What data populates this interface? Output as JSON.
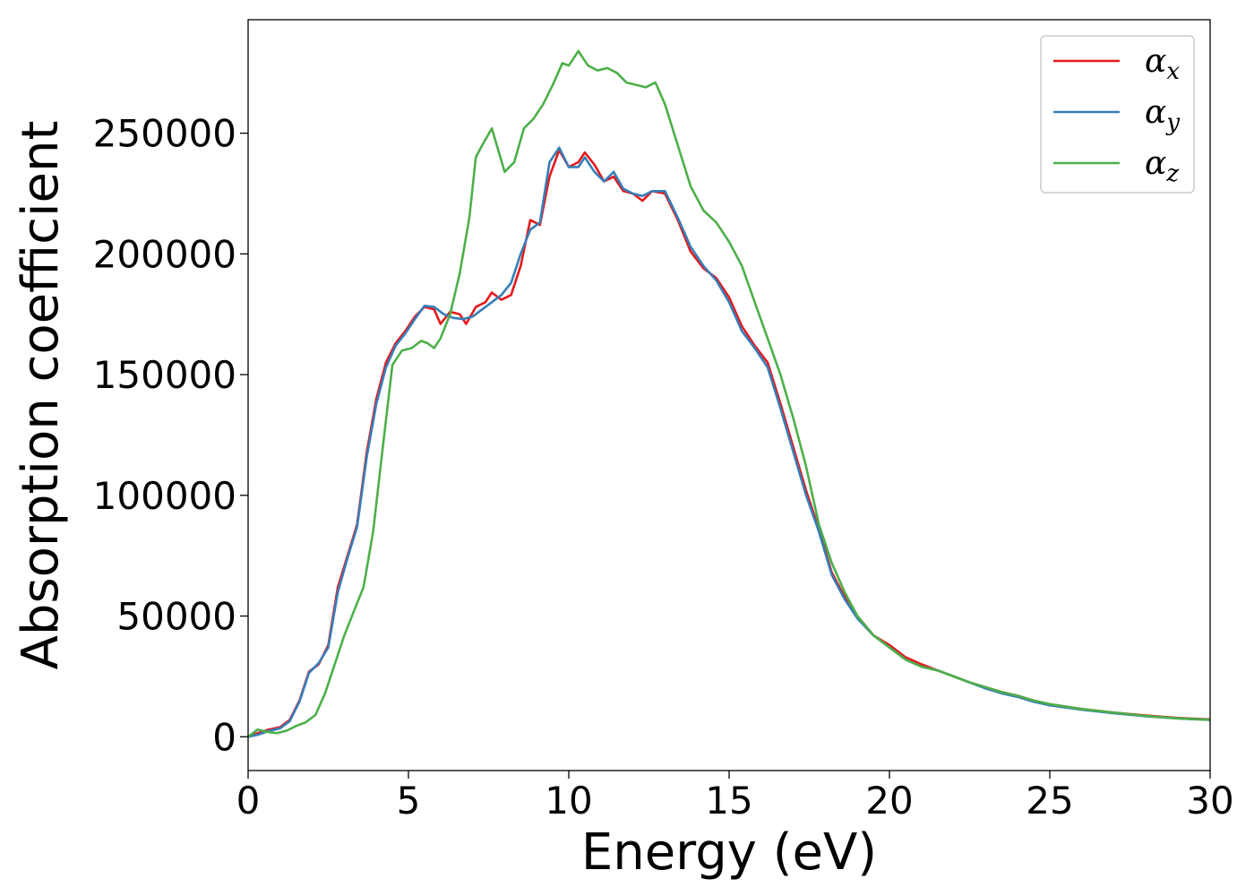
{
  "chart_data": {
    "type": "line",
    "title": "",
    "xlabel": "Energy (eV)",
    "ylabel": "Absorption coefficient",
    "xlim": [
      0,
      30
    ],
    "ylim": [
      -14000,
      297000
    ],
    "xticks": [
      0,
      5,
      10,
      15,
      20,
      25,
      30
    ],
    "yticks": [
      0,
      50000,
      100000,
      150000,
      200000,
      250000
    ],
    "grid": false,
    "legend_position": "top-right",
    "series": [
      {
        "name": "α",
        "subscript": "x",
        "color": "#e41a1c",
        "points": [
          [
            0,
            0
          ],
          [
            0.3,
            1500
          ],
          [
            0.6,
            2800
          ],
          [
            1.0,
            4000
          ],
          [
            1.3,
            7000
          ],
          [
            1.6,
            15000
          ],
          [
            1.9,
            27000
          ],
          [
            2.2,
            30000
          ],
          [
            2.5,
            38000
          ],
          [
            2.8,
            62000
          ],
          [
            3.1,
            75000
          ],
          [
            3.4,
            88000
          ],
          [
            3.7,
            118000
          ],
          [
            4.0,
            140000
          ],
          [
            4.3,
            155000
          ],
          [
            4.6,
            163000
          ],
          [
            4.9,
            168000
          ],
          [
            5.2,
            174000
          ],
          [
            5.5,
            178000
          ],
          [
            5.8,
            177000
          ],
          [
            6.0,
            171000
          ],
          [
            6.3,
            176000
          ],
          [
            6.6,
            175000
          ],
          [
            6.8,
            171000
          ],
          [
            7.1,
            178000
          ],
          [
            7.4,
            180000
          ],
          [
            7.6,
            184000
          ],
          [
            7.9,
            181000
          ],
          [
            8.2,
            183000
          ],
          [
            8.5,
            195000
          ],
          [
            8.8,
            214000
          ],
          [
            9.1,
            212000
          ],
          [
            9.4,
            232000
          ],
          [
            9.7,
            243000
          ],
          [
            10.0,
            236000
          ],
          [
            10.3,
            238000
          ],
          [
            10.5,
            242000
          ],
          [
            10.8,
            237000
          ],
          [
            11.1,
            230000
          ],
          [
            11.4,
            232000
          ],
          [
            11.7,
            226000
          ],
          [
            12.0,
            225000
          ],
          [
            12.3,
            222000
          ],
          [
            12.6,
            226000
          ],
          [
            13.0,
            225000
          ],
          [
            13.4,
            214000
          ],
          [
            13.8,
            201000
          ],
          [
            14.2,
            194000
          ],
          [
            14.6,
            190000
          ],
          [
            15.0,
            182000
          ],
          [
            15.4,
            170000
          ],
          [
            15.8,
            162000
          ],
          [
            16.2,
            155000
          ],
          [
            16.6,
            138000
          ],
          [
            17.0,
            120000
          ],
          [
            17.4,
            102000
          ],
          [
            17.8,
            86000
          ],
          [
            18.2,
            68000
          ],
          [
            18.6,
            58000
          ],
          [
            19.0,
            50000
          ],
          [
            19.5,
            42000
          ],
          [
            20.0,
            38000
          ],
          [
            20.5,
            33000
          ],
          [
            21.0,
            30000
          ],
          [
            21.5,
            27500
          ],
          [
            22.0,
            25000
          ],
          [
            22.5,
            22500
          ],
          [
            23.0,
            20500
          ],
          [
            23.5,
            18500
          ],
          [
            24.0,
            17000
          ],
          [
            24.5,
            15000
          ],
          [
            25.0,
            13500
          ],
          [
            26.0,
            11500
          ],
          [
            27.0,
            10000
          ],
          [
            28.0,
            8800
          ],
          [
            29.0,
            7800
          ],
          [
            30.0,
            7200
          ]
        ]
      },
      {
        "name": "α",
        "subscript": "y",
        "color": "#377eb8",
        "points": [
          [
            0,
            0
          ],
          [
            0.3,
            800
          ],
          [
            0.6,
            2200
          ],
          [
            1.0,
            3500
          ],
          [
            1.3,
            6500
          ],
          [
            1.6,
            14500
          ],
          [
            1.9,
            26500
          ],
          [
            2.2,
            30500
          ],
          [
            2.5,
            37000
          ],
          [
            2.8,
            60000
          ],
          [
            3.1,
            74000
          ],
          [
            3.4,
            87000
          ],
          [
            3.7,
            116000
          ],
          [
            4.0,
            138000
          ],
          [
            4.3,
            153000
          ],
          [
            4.6,
            162000
          ],
          [
            4.9,
            167000
          ],
          [
            5.2,
            173000
          ],
          [
            5.5,
            178500
          ],
          [
            5.8,
            178000
          ],
          [
            6.1,
            175000
          ],
          [
            6.4,
            173500
          ],
          [
            6.7,
            173000
          ],
          [
            7.0,
            174000
          ],
          [
            7.3,
            177000
          ],
          [
            7.6,
            180000
          ],
          [
            7.9,
            183000
          ],
          [
            8.2,
            188000
          ],
          [
            8.5,
            200000
          ],
          [
            8.8,
            210000
          ],
          [
            9.1,
            213000
          ],
          [
            9.4,
            238000
          ],
          [
            9.7,
            244000
          ],
          [
            10.0,
            236000
          ],
          [
            10.3,
            236000
          ],
          [
            10.5,
            240000
          ],
          [
            10.8,
            234000
          ],
          [
            11.1,
            230000
          ],
          [
            11.4,
            234000
          ],
          [
            11.7,
            227000
          ],
          [
            12.0,
            225000
          ],
          [
            12.3,
            224000
          ],
          [
            12.6,
            226000
          ],
          [
            13.0,
            226000
          ],
          [
            13.4,
            215000
          ],
          [
            13.8,
            203000
          ],
          [
            14.2,
            195000
          ],
          [
            14.6,
            189000
          ],
          [
            15.0,
            180000
          ],
          [
            15.4,
            168000
          ],
          [
            15.8,
            161000
          ],
          [
            16.2,
            153000
          ],
          [
            16.6,
            136000
          ],
          [
            17.0,
            118000
          ],
          [
            17.4,
            100000
          ],
          [
            17.8,
            85000
          ],
          [
            18.2,
            67000
          ],
          [
            18.6,
            57000
          ],
          [
            19.0,
            49000
          ],
          [
            19.5,
            42000
          ],
          [
            20.0,
            37000
          ],
          [
            20.5,
            32000
          ],
          [
            21.0,
            29000
          ],
          [
            21.5,
            27500
          ],
          [
            22.0,
            25000
          ],
          [
            22.5,
            22500
          ],
          [
            23.0,
            20000
          ],
          [
            23.5,
            18000
          ],
          [
            24.0,
            16500
          ],
          [
            24.5,
            14500
          ],
          [
            25.0,
            13000
          ],
          [
            26.0,
            11200
          ],
          [
            27.0,
            9700
          ],
          [
            28.0,
            8500
          ],
          [
            29.0,
            7600
          ],
          [
            30.0,
            7000
          ]
        ]
      },
      {
        "name": "α",
        "subscript": "z",
        "color": "#4daf4a",
        "points": [
          [
            0,
            0
          ],
          [
            0.3,
            3000
          ],
          [
            0.6,
            2000
          ],
          [
            0.9,
            1500
          ],
          [
            1.2,
            2500
          ],
          [
            1.5,
            4500
          ],
          [
            1.8,
            6000
          ],
          [
            2.1,
            9000
          ],
          [
            2.4,
            18000
          ],
          [
            2.7,
            30000
          ],
          [
            3.0,
            42000
          ],
          [
            3.3,
            52000
          ],
          [
            3.6,
            62000
          ],
          [
            3.9,
            85000
          ],
          [
            4.2,
            120000
          ],
          [
            4.5,
            154000
          ],
          [
            4.8,
            160000
          ],
          [
            5.1,
            161000
          ],
          [
            5.4,
            164000
          ],
          [
            5.6,
            163000
          ],
          [
            5.8,
            161000
          ],
          [
            6.0,
            165000
          ],
          [
            6.3,
            175000
          ],
          [
            6.6,
            192000
          ],
          [
            6.9,
            215000
          ],
          [
            7.1,
            240000
          ],
          [
            7.3,
            245000
          ],
          [
            7.6,
            252000
          ],
          [
            7.8,
            243000
          ],
          [
            8.0,
            234000
          ],
          [
            8.3,
            238000
          ],
          [
            8.6,
            252000
          ],
          [
            8.9,
            256000
          ],
          [
            9.2,
            262000
          ],
          [
            9.5,
            270000
          ],
          [
            9.8,
            279000
          ],
          [
            10.0,
            278000
          ],
          [
            10.3,
            284000
          ],
          [
            10.6,
            278000
          ],
          [
            10.9,
            276000
          ],
          [
            11.2,
            277000
          ],
          [
            11.5,
            275000
          ],
          [
            11.8,
            271000
          ],
          [
            12.1,
            270000
          ],
          [
            12.4,
            269000
          ],
          [
            12.7,
            271000
          ],
          [
            13.0,
            262000
          ],
          [
            13.4,
            245000
          ],
          [
            13.8,
            228000
          ],
          [
            14.2,
            218000
          ],
          [
            14.6,
            213000
          ],
          [
            15.0,
            205000
          ],
          [
            15.4,
            195000
          ],
          [
            15.8,
            180000
          ],
          [
            16.2,
            165000
          ],
          [
            16.6,
            150000
          ],
          [
            17.0,
            132000
          ],
          [
            17.4,
            112000
          ],
          [
            17.8,
            88000
          ],
          [
            18.2,
            72000
          ],
          [
            18.6,
            60000
          ],
          [
            19.0,
            50000
          ],
          [
            19.5,
            42000
          ],
          [
            20.0,
            37000
          ],
          [
            20.5,
            32000
          ],
          [
            21.0,
            29000
          ],
          [
            21.5,
            27500
          ],
          [
            22.0,
            25000
          ],
          [
            22.5,
            22500
          ],
          [
            23.0,
            20500
          ],
          [
            23.5,
            18500
          ],
          [
            24.0,
            17000
          ],
          [
            24.5,
            15000
          ],
          [
            25.0,
            13500
          ],
          [
            26.0,
            11500
          ],
          [
            27.0,
            10000
          ],
          [
            28.0,
            8600
          ],
          [
            29.0,
            7600
          ],
          [
            30.0,
            7000
          ]
        ]
      }
    ]
  }
}
